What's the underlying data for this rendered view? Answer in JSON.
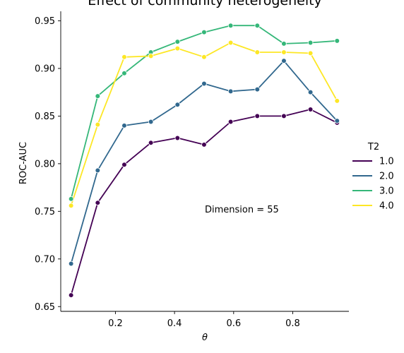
{
  "chart_data": {
    "type": "line",
    "title": "Effect of community heterogeneity",
    "xlabel": "θ",
    "ylabel": "ROC-AUC",
    "xlim": [
      0.015,
      0.99
    ],
    "ylim": [
      0.645,
      0.96
    ],
    "xticks": [
      0.2,
      0.4,
      0.6,
      0.8
    ],
    "xtick_labels": [
      "0.2",
      "0.4",
      "0.6",
      "0.8"
    ],
    "yticks": [
      0.65,
      0.7,
      0.75,
      0.8,
      0.85,
      0.9,
      0.95
    ],
    "ytick_labels": [
      "0.65",
      "0.70",
      "0.75",
      "0.80",
      "0.85",
      "0.90",
      "0.95"
    ],
    "grid": false,
    "legend_title": "T2",
    "legend_position": "right",
    "annotation": "Dimension = 55",
    "x": [
      0.05,
      0.14,
      0.23,
      0.32,
      0.41,
      0.5,
      0.59,
      0.68,
      0.77,
      0.86,
      0.95
    ],
    "series": [
      {
        "name": "1.0",
        "color": "#440154",
        "values": [
          0.662,
          0.759,
          0.799,
          0.822,
          0.827,
          0.82,
          0.844,
          0.85,
          0.85,
          0.857,
          0.843
        ]
      },
      {
        "name": "2.0",
        "color": "#31688e",
        "values": [
          0.695,
          0.793,
          0.84,
          0.844,
          0.862,
          0.884,
          0.876,
          0.878,
          0.908,
          0.875,
          0.845
        ]
      },
      {
        "name": "3.0",
        "color": "#35b779",
        "values": [
          0.763,
          0.871,
          0.895,
          0.917,
          0.928,
          0.938,
          0.945,
          0.945,
          0.926,
          0.927,
          0.929
        ]
      },
      {
        "name": "4.0",
        "color": "#fde725",
        "values": [
          0.756,
          0.841,
          0.912,
          0.913,
          0.921,
          0.912,
          0.927,
          0.917,
          0.917,
          0.916,
          0.866
        ]
      }
    ]
  }
}
